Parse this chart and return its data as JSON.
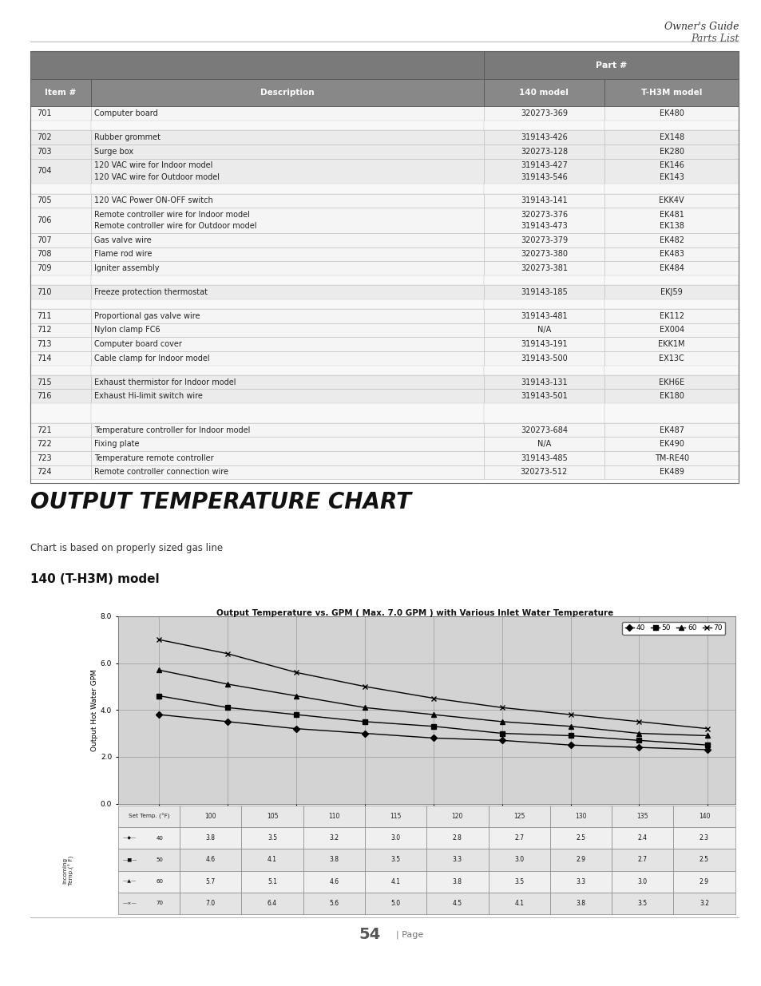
{
  "page_title_line1": "Owner's Guide",
  "page_title_line2": "Parts List",
  "section_title": "OUTPUT TEMPERATURE CHART",
  "subtitle": "Chart is based on properly sized gas line",
  "model_title": "140 (T-H3M) model",
  "chart_title": "Output Temperature vs. GPM ( Max. 7.0 GPM ) with Various Inlet Water Temperature",
  "chart_ylabel": "Output Hot Water GPM",
  "set_temps": [
    100,
    105,
    110,
    115,
    120,
    125,
    130,
    135,
    140
  ],
  "series": {
    "40": [
      3.8,
      3.5,
      3.2,
      3.0,
      2.8,
      2.7,
      2.5,
      2.4,
      2.3
    ],
    "50": [
      4.6,
      4.1,
      3.8,
      3.5,
      3.3,
      3.0,
      2.9,
      2.7,
      2.5
    ],
    "60": [
      5.7,
      5.1,
      4.6,
      4.1,
      3.8,
      3.5,
      3.3,
      3.0,
      2.9
    ],
    "70": [
      7.0,
      6.4,
      5.6,
      5.0,
      4.5,
      4.1,
      3.8,
      3.5,
      3.2
    ]
  },
  "chart_bg": "#d3d3d3",
  "header_bg": "#7a7a7a",
  "header2_bg": "#888888",
  "parts_table_rows": [
    {
      "group": 0,
      "item": "701",
      "desc": "Computer board",
      "p140": "320273-369",
      "ph3m": "EK480"
    },
    {
      "group": 1,
      "item": "702",
      "desc": "Rubber grommet",
      "p140": "319143-426",
      "ph3m": "EX148"
    },
    {
      "group": 1,
      "item": "703",
      "desc": "Surge box",
      "p140": "320273-128",
      "ph3m": "EK280"
    },
    {
      "group": 1,
      "item": "704",
      "desc": "120 VAC wire for Indoor model",
      "desc2": "120 VAC wire for Outdoor model",
      "p140": "319143-427",
      "p140_2": "319143-546",
      "ph3m": "EK146",
      "ph3m_2": "EK143"
    },
    {
      "group": 2,
      "item": "705",
      "desc": "120 VAC Power ON-OFF switch",
      "p140": "319143-141",
      "ph3m": "EKK4V"
    },
    {
      "group": 2,
      "item": "706",
      "desc": "Remote controller wire for Indoor model",
      "desc2": "Remote controller wire for Outdoor model",
      "p140": "320273-376",
      "p140_2": "319143-473",
      "ph3m": "EK481",
      "ph3m_2": "EK138"
    },
    {
      "group": 2,
      "item": "707",
      "desc": "Gas valve wire",
      "p140": "320273-379",
      "ph3m": "EK482"
    },
    {
      "group": 2,
      "item": "708",
      "desc": "Flame rod wire",
      "p140": "320273-380",
      "ph3m": "EK483"
    },
    {
      "group": 2,
      "item": "709",
      "desc": "Igniter assembly",
      "p140": "320273-381",
      "ph3m": "EK484"
    },
    {
      "group": 3,
      "item": "710",
      "desc": "Freeze protection thermostat",
      "p140": "319143-185",
      "ph3m": "EKJ59"
    },
    {
      "group": 4,
      "item": "711",
      "desc": "Proportional gas valve wire",
      "p140": "319143-481",
      "ph3m": "EK112"
    },
    {
      "group": 4,
      "item": "712",
      "desc": "Nylon clamp FC6",
      "p140": "N/A",
      "ph3m": "EX004"
    },
    {
      "group": 4,
      "item": "713",
      "desc": "Computer board cover",
      "p140": "319143-191",
      "ph3m": "EKK1M"
    },
    {
      "group": 4,
      "item": "714",
      "desc": "Cable clamp for Indoor model",
      "p140": "319143-500",
      "ph3m": "EX13C"
    },
    {
      "group": 5,
      "item": "715",
      "desc": "Exhaust thermistor for Indoor model",
      "p140": "319143-131",
      "ph3m": "EKH6E"
    },
    {
      "group": 5,
      "item": "716",
      "desc": "Exhaust Hi-limit switch wire",
      "p140": "319143-501",
      "ph3m": "EK180"
    },
    {
      "group": 6,
      "item": "721",
      "desc": "Temperature controller for Indoor model",
      "p140": "320273-684",
      "ph3m": "EK487"
    },
    {
      "group": 6,
      "item": "722",
      "desc": "Fixing plate",
      "p140": "N/A",
      "ph3m": "EK490"
    },
    {
      "group": 6,
      "item": "723",
      "desc": "Temperature remote controller",
      "p140": "319143-485",
      "ph3m": "TM-RE40"
    },
    {
      "group": 6,
      "item": "724",
      "desc": "Remote controller connection wire",
      "p140": "320273-512",
      "ph3m": "EK489"
    }
  ],
  "page_number": "54",
  "markers": [
    "D",
    "s",
    "^",
    "x"
  ],
  "legend_labels": [
    "40",
    "50",
    "60",
    "70"
  ],
  "background_color": "#ffffff"
}
